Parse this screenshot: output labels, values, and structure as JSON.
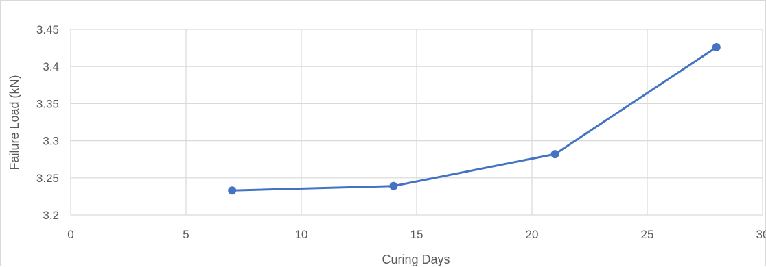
{
  "chart_data": {
    "type": "line",
    "title": "",
    "xlabel": "Curing Days",
    "ylabel": "Failure Load (kN)",
    "xlim": [
      0,
      30
    ],
    "ylim": [
      3.2,
      3.45
    ],
    "x_ticks": [
      "0",
      "5",
      "10",
      "15",
      "20",
      "25",
      "30"
    ],
    "y_ticks": [
      "3.2",
      "3.25",
      "3.3",
      "3.35",
      "3.4",
      "3.45"
    ],
    "grid": true,
    "legend": "none",
    "series": [
      {
        "color": "#4472C4",
        "x": [
          7,
          14,
          21,
          28
        ],
        "y": [
          3.233,
          3.239,
          3.282,
          3.426
        ]
      }
    ]
  }
}
